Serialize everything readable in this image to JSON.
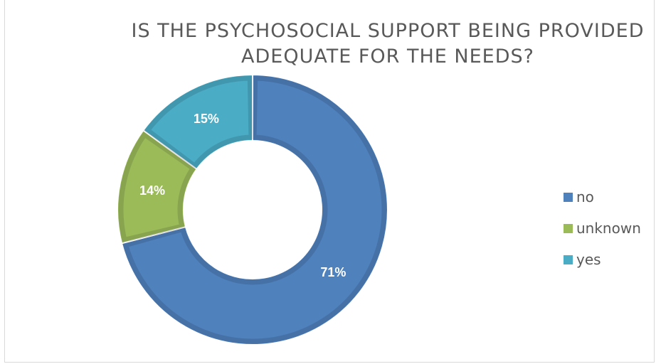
{
  "chart_data": {
    "type": "pie",
    "title": "IS THE PSYCHOSOCIAL SUPPORT BEING PROVIDED ADEQUATE FOR THE NEEDS?",
    "title_lines": [
      "IS THE PSYCHOSOCIAL SUPPORT BEING PROVIDED",
      "ADEQUATE FOR THE NEEDS?"
    ],
    "donut": true,
    "categories": [
      "no",
      "unknown",
      "yes"
    ],
    "values": [
      71,
      14,
      15
    ],
    "data_labels": [
      "71%",
      "14%",
      "15%"
    ],
    "colors": [
      "#4f81bd",
      "#9bbb59",
      "#4bacc6"
    ],
    "legend_position": "right"
  }
}
